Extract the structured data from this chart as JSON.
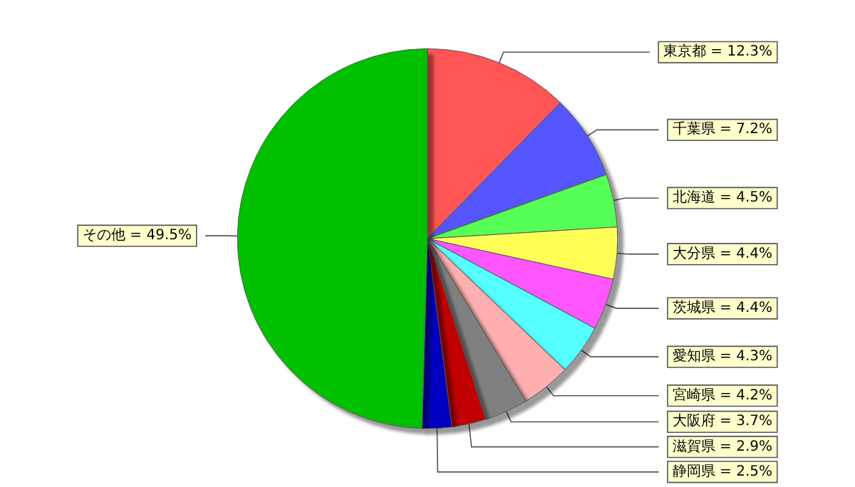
{
  "chart_data": {
    "type": "pie",
    "categories": [
      "東京都",
      "千葉県",
      "北海道",
      "大分県",
      "茨城県",
      "愛知県",
      "宮崎県",
      "大阪府",
      "滋賀県",
      "静岡県",
      "その他"
    ],
    "values": [
      12.3,
      7.2,
      4.5,
      4.4,
      4.4,
      4.3,
      4.2,
      3.7,
      2.9,
      2.5,
      49.5
    ],
    "colors": [
      "#ff5555",
      "#5555ff",
      "#55ff55",
      "#ffff55",
      "#ff55ff",
      "#55ffff",
      "#ffafaf",
      "#808080",
      "#c00000",
      "#0000c0",
      "#00c000"
    ],
    "value_labels": [
      "= 12.3%",
      "= 7.2%",
      "= 4.5%",
      "= 4.4%",
      "= 4.4%",
      "= 4.3%",
      "= 4.2%",
      "= 3.7%",
      "= 2.9%",
      "= 2.5%",
      "= 49.5%"
    ],
    "legend": false
  }
}
